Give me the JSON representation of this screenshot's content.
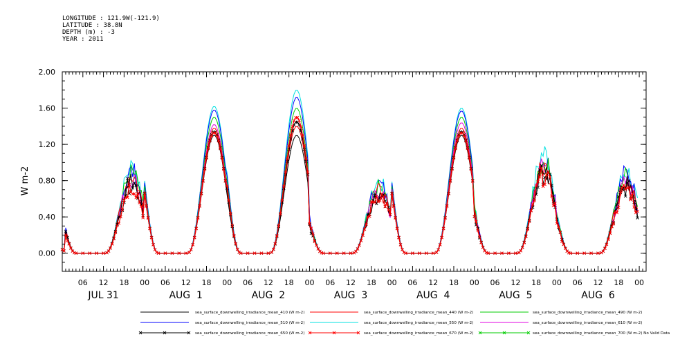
{
  "meta": {
    "longitude": "LONGITUDE : 121.9W(-121.9)",
    "latitude": "LATITUDE : 38.8N",
    "depth": "DEPTH (m) : -3",
    "year": "YEAR : 2011"
  },
  "chart_data": {
    "type": "line",
    "title": "",
    "ylabel": "W m-2",
    "xlabel": "",
    "ylim": [
      -0.2,
      2.0
    ],
    "xlim_hours": [
      0,
      170
    ],
    "yticks": [
      "0.00",
      "0.40",
      "0.80",
      "1.20",
      "1.60",
      "2.00"
    ],
    "hour_tick_labels": [
      "06",
      "12",
      "18",
      "00",
      "06",
      "12",
      "18",
      "00",
      "06",
      "12",
      "18",
      "00",
      "06",
      "12",
      "18",
      "00",
      "06",
      "12",
      "18",
      "00",
      "06",
      "12",
      "18",
      "00",
      "06",
      "12",
      "18",
      "00"
    ],
    "day_labels": [
      "JUL 31",
      "AUG  1",
      "AUG  2",
      "AUG  3",
      "AUG  4",
      "AUG  5",
      "AUG  6"
    ],
    "series": [
      {
        "name": "sea_surface_downwelling_irradiance_mean_410 (W m-2)",
        "color": "#000000",
        "marker": "none"
      },
      {
        "name": "sea_surface_downwelling_irradiance_mean_440 (W m-2)",
        "color": "#ff0000",
        "marker": "none"
      },
      {
        "name": "sea_surface_downwelling_irradiance_mean_490 (W m-2)",
        "color": "#00cc00",
        "marker": "none"
      },
      {
        "name": "sea_surface_downwelling_irradiance_mean_510 (W m-2)",
        "color": "#0000ff",
        "marker": "none"
      },
      {
        "name": "sea_surface_downwelling_irradiance_mean_550 (W m-2)",
        "color": "#00e0e0",
        "marker": "none"
      },
      {
        "name": "sea_surface_downwelling_irradiance_mean_610 (W m-2)",
        "color": "#e000e0",
        "marker": "none"
      },
      {
        "name": "sea_surface_downwelling_irradiance_mean_650 (W m-2)",
        "color": "#000000",
        "marker": "x"
      },
      {
        "name": "sea_surface_downwelling_irradiance_mean_670 (W m-2)",
        "color": "#ff0000",
        "marker": "x"
      },
      {
        "name": "sea_surface_downwelling_irradiance_mean_700 (W m-2) No Valid Data",
        "color": "#00cc00",
        "marker": "x"
      }
    ],
    "daily_peaks": [
      {
        "peak_hour": 20,
        "values": [
          0.84,
          0.9,
          0.93,
          0.95,
          1.0,
          0.88,
          0.82,
          0.78,
          null
        ]
      },
      {
        "peak_hour": 44,
        "values": [
          1.3,
          1.38,
          1.5,
          1.58,
          1.62,
          1.42,
          1.34,
          1.33,
          null
        ]
      },
      {
        "peak_hour": 66,
        "values": [
          1.3,
          1.4,
          1.6,
          1.72,
          1.8,
          1.5,
          1.45,
          1.5,
          null
        ]
      },
      {
        "peak_hour": 90,
        "values": [
          0.7,
          0.72,
          0.76,
          0.8,
          0.82,
          0.72,
          0.68,
          0.68,
          null
        ]
      },
      {
        "peak_hour": 114,
        "values": [
          1.3,
          1.38,
          1.5,
          1.57,
          1.6,
          1.44,
          1.34,
          1.33,
          null
        ]
      },
      {
        "peak_hour": 138,
        "values": [
          0.95,
          1.0,
          1.05,
          1.1,
          1.16,
          1.0,
          0.93,
          0.9,
          null
        ]
      },
      {
        "peak_hour": 162,
        "values": [
          0.8,
          0.85,
          0.9,
          0.93,
          0.95,
          0.82,
          0.76,
          0.75,
          null
        ]
      }
    ],
    "grid": false,
    "legend_position": "bottom"
  }
}
